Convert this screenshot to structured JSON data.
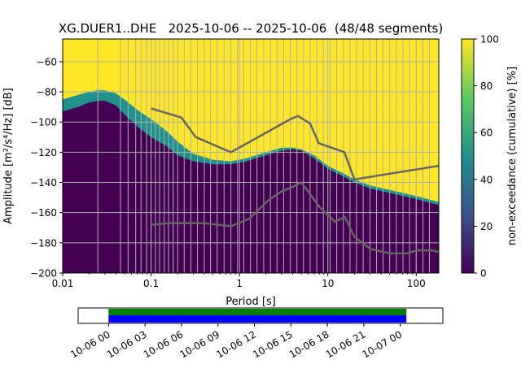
{
  "chart_data": [
    {
      "type": "heatmap",
      "title": "XG.DUER1..DHE   2025-10-06 -- 2025-10-06  (48/48 segments)",
      "xlabel": "Period [s]",
      "ylabel": "Amplitude [m²/s⁴/Hz] [dB]",
      "xscale": "log",
      "xlim": [
        0.01,
        180
      ],
      "ylim": [
        -200,
        -45
      ],
      "xticks": [
        0.01,
        0.1,
        1,
        10,
        100
      ],
      "xtick_labels": [
        "0.01",
        "0.1",
        "1",
        "10",
        "100"
      ],
      "yticks": [
        -200,
        -180,
        -160,
        -140,
        -120,
        -100,
        -80,
        -60
      ],
      "ytick_labels": [
        "−200",
        "−180",
        "−160",
        "−140",
        "−120",
        "−100",
        "−80",
        "−60"
      ],
      "grid": true,
      "colorbar": {
        "label": "non-exceedance (cumulative) [%]",
        "range": [
          0,
          100
        ],
        "ticks": [
          "0",
          "20",
          "40",
          "60",
          "80",
          "100"
        ],
        "colors": [
          "#440154",
          "#3b528b",
          "#21918c",
          "#5ec962",
          "#fde725"
        ]
      },
      "psd_boundary": {
        "period": [
          0.01,
          0.015,
          0.02,
          0.025,
          0.03,
          0.04,
          0.05,
          0.07,
          0.1,
          0.15,
          0.2,
          0.3,
          0.5,
          0.8,
          1.2,
          2,
          3,
          4,
          5,
          7,
          10,
          15,
          20,
          30,
          50,
          100,
          180
        ],
        "lower_db": [
          -93,
          -90,
          -87,
          -86,
          -86,
          -89,
          -95,
          -103,
          -110,
          -116,
          -122,
          -126,
          -128,
          -128,
          -126,
          -122,
          -119,
          -118,
          -119,
          -124,
          -131,
          -136,
          -140,
          -144,
          -147,
          -151,
          -155
        ],
        "upper_db": [
          -85,
          -82,
          -80,
          -79,
          -79,
          -81,
          -85,
          -92,
          -98,
          -106,
          -113,
          -121,
          -125,
          -126,
          -124,
          -120,
          -117,
          -117,
          -118,
          -122,
          -129,
          -134,
          -138,
          -142,
          -145,
          -149,
          -153
        ]
      },
      "nhnm": {
        "period": [
          0.1,
          0.22,
          0.32,
          0.8,
          3.8,
          4.6,
          6.3,
          7.9,
          15.4,
          20,
          180
        ],
        "db": [
          -91,
          -97,
          -110,
          -120,
          -98,
          -96,
          -101,
          -114,
          -120,
          -138,
          -129
        ]
      },
      "nlnm": {
        "period": [
          0.1,
          0.17,
          0.4,
          0.8,
          1.3,
          2.1,
          3,
          4,
          5,
          6,
          8,
          12,
          15.6,
          20,
          30,
          50,
          80,
          100,
          150,
          180
        ],
        "db": [
          -168,
          -167,
          -167,
          -169,
          -164,
          -152,
          -146,
          -143,
          -140,
          -146,
          -156,
          -166,
          -163,
          -176,
          -184,
          -187,
          -187,
          -185,
          -185,
          -186
        ]
      },
      "vertical_lines_period": [
        0.025,
        0.045,
        0.055,
        0.067,
        0.077,
        0.089,
        0.1,
        0.112,
        0.125,
        0.141,
        0.158,
        0.178,
        0.2,
        0.237,
        0.282,
        0.335,
        0.4,
        0.47,
        0.56,
        0.67,
        0.8,
        0.95,
        1.12,
        1.33,
        1.58,
        1.88,
        2.24,
        2.66,
        3.16,
        3.76,
        4.47,
        5.3,
        6.3,
        7.5,
        8.9,
        10.6,
        12.6,
        15,
        17.8,
        21.1,
        25.1,
        30,
        35.5,
        42.2,
        50.1,
        59.6,
        70.8,
        84.1,
        100,
        119,
        141
      ]
    },
    {
      "type": "timeline",
      "xtick_labels": [
        "10-06 00",
        "10-06 03",
        "10-06 06",
        "10-06 09",
        "10-06 12",
        "10-06 15",
        "10-06 18",
        "10-06 21",
        "10-07 00"
      ],
      "xlim_hours": [
        -2.5,
        27.5
      ],
      "coverage_hours": [
        0,
        24.5
      ],
      "bar_colors": [
        "#008000",
        "#0000ff"
      ]
    }
  ]
}
